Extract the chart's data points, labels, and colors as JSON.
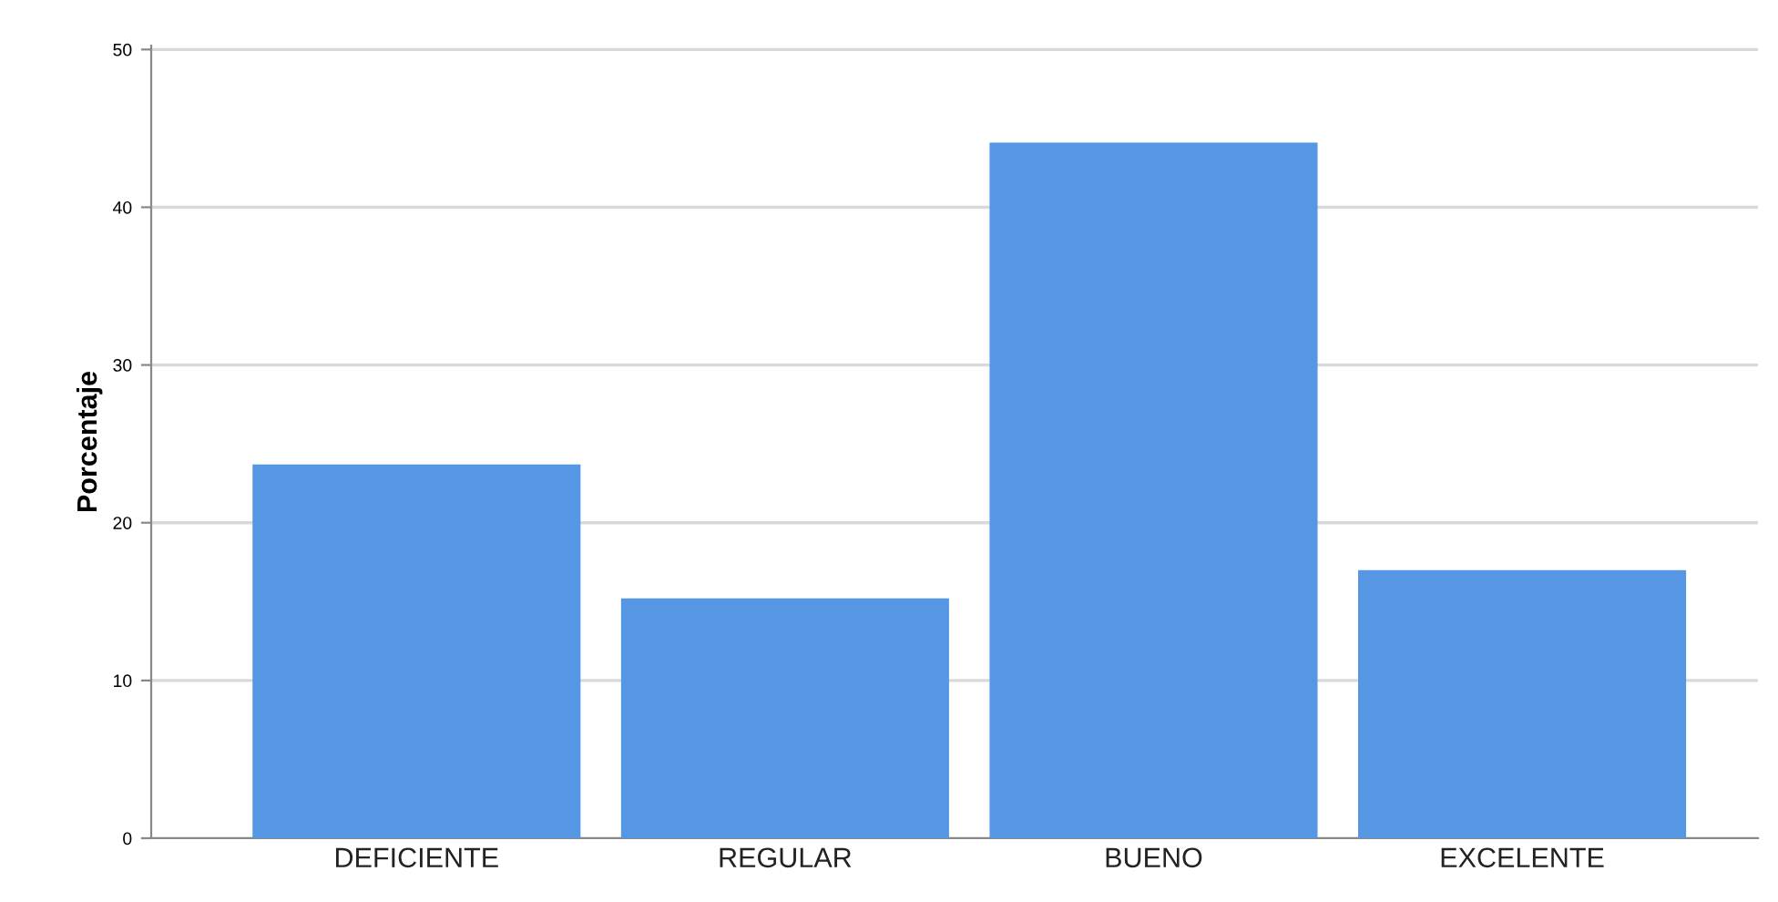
{
  "chart_data": {
    "type": "bar",
    "ylabel": "Porcentaje",
    "categories": [
      "DEFICIENTE",
      "REGULAR",
      "BUENO",
      "EXCELENTE"
    ],
    "values": [
      23.7,
      15.2,
      44.1,
      17.0
    ],
    "color": "#5597e3",
    "ylim": [
      0,
      50
    ],
    "yticks": [
      0,
      10,
      20,
      30,
      40,
      50
    ],
    "grid": "y"
  }
}
